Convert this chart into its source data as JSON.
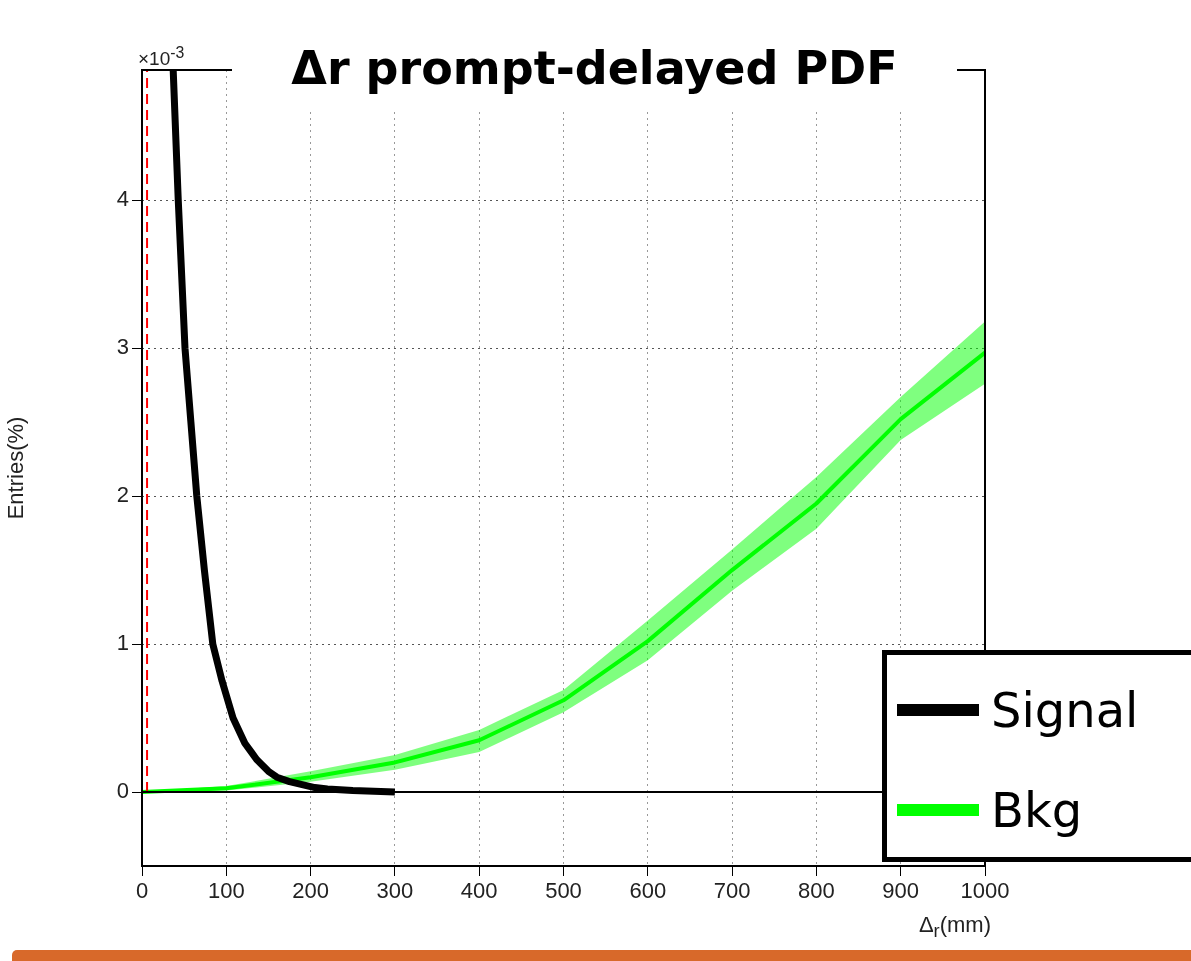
{
  "chart_data": {
    "type": "line",
    "title": "Δr prompt-delayed PDF",
    "xlabel": "Δ$_{r}$(mm)",
    "ylabel": "Entries(%)",
    "annotations": [
      "×10$^{-3}$"
    ],
    "xlim": [
      0,
      1000
    ],
    "xticks": [
      0,
      100,
      200,
      300,
      400,
      500,
      600,
      700,
      800,
      900,
      1000
    ],
    "ylim": [
      -0.5,
      4.88
    ],
    "yticks": [
      0,
      1,
      2,
      3,
      4
    ],
    "grid": true,
    "legend": "bottom right",
    "marker": "none",
    "ref_lines": [
      {
        "axis": "y",
        "value": 0,
        "color": "#000000"
      }
    ],
    "series": [
      {
        "color": "#ff0000",
        "line_style": "dashed",
        "x": [
          6,
          6
        ],
        "values": [
          0,
          4.88
        ]
      },
      {
        "name": "Signal",
        "color": "#000000",
        "x": [
          37,
          43,
          51,
          58,
          65,
          74,
          84,
          95,
          108,
          122,
          136,
          150,
          160,
          175,
          190,
          205,
          220,
          250,
          300
        ],
        "values": [
          4.88,
          4,
          3,
          2.5,
          2,
          1.5,
          1,
          0.75,
          0.5,
          0.33,
          0.22,
          0.14,
          0.1,
          0.07,
          0.05,
          0.03,
          0.02,
          0.01,
          0
        ]
      },
      {
        "name": "Bkg",
        "color": "#00ff00",
        "x": [
          0,
          100,
          200,
          300,
          400,
          500,
          600,
          700,
          800,
          900,
          1000
        ],
        "values": [
          0,
          0.025,
          0.1,
          0.2,
          0.35,
          0.62,
          1.02,
          1.5,
          1.95,
          2.52,
          2.97
        ],
        "lower": [
          0,
          0.01,
          0.07,
          0.15,
          0.27,
          0.54,
          0.89,
          1.36,
          1.78,
          2.38,
          2.76
        ],
        "upper": [
          0,
          0.04,
          0.14,
          0.25,
          0.42,
          0.69,
          1.16,
          1.64,
          2.13,
          2.67,
          3.18
        ]
      }
    ]
  }
}
